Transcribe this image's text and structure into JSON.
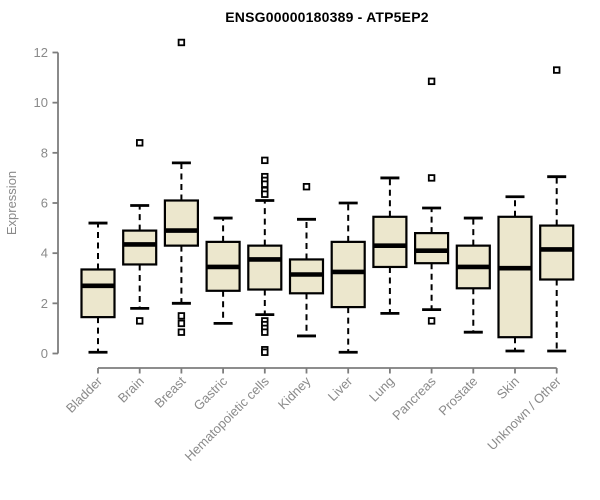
{
  "header": {
    "title_note": "title is bound from chart_data.title"
  },
  "colors": {
    "background": "#ffffff",
    "box_fill": "#ece7cd",
    "box_border": "#000000",
    "median_line": "#000000",
    "whisker": "#000000",
    "outlier_stroke": "#000000",
    "outlier_fill": "#ffffff",
    "axis_line": "#7d7d7d",
    "axis_text": "#8a8a8a",
    "title_text": "#000000"
  },
  "chart_data": {
    "type": "boxplot",
    "title": "ENSG00000180389 - ATP5EP2",
    "ylabel": "Expression",
    "xlabel": "",
    "ylim": [
      0,
      12
    ],
    "y_ticks": [
      0,
      2,
      4,
      6,
      8,
      10,
      12
    ],
    "grid": false,
    "legend": "none",
    "categories": [
      "Bladder",
      "Brain",
      "Breast",
      "Gastric",
      "Hematopoietic cells",
      "Kidney",
      "Liver",
      "Lung",
      "Pancreas",
      "Prostate",
      "Skin",
      "Unknown / Other"
    ],
    "series": [
      {
        "name": "Bladder",
        "whisker_low": 0.05,
        "q1": 1.45,
        "median": 2.7,
        "q3": 3.35,
        "whisker_high": 5.2,
        "outliers": []
      },
      {
        "name": "Brain",
        "whisker_low": 1.8,
        "q1": 3.55,
        "median": 4.35,
        "q3": 4.9,
        "whisker_high": 5.9,
        "outliers": [
          8.4,
          1.3
        ]
      },
      {
        "name": "Breast",
        "whisker_low": 2.0,
        "q1": 4.3,
        "median": 4.9,
        "q3": 6.1,
        "whisker_high": 7.6,
        "outliers": [
          12.4,
          1.5,
          1.2,
          0.85
        ]
      },
      {
        "name": "Gastric",
        "whisker_low": 1.2,
        "q1": 2.5,
        "median": 3.45,
        "q3": 4.45,
        "whisker_high": 5.4,
        "outliers": []
      },
      {
        "name": "Hematopoietic cells",
        "whisker_low": 1.55,
        "q1": 2.55,
        "median": 3.75,
        "q3": 4.3,
        "whisker_high": 6.1,
        "outliers": [
          7.7,
          7.05,
          6.9,
          6.75,
          6.5,
          6.35,
          1.3,
          1.15,
          1.0,
          0.85,
          0.15,
          0.05
        ]
      },
      {
        "name": "Kidney",
        "whisker_low": 0.7,
        "q1": 2.4,
        "median": 3.15,
        "q3": 3.75,
        "whisker_high": 5.35,
        "outliers": [
          6.65
        ]
      },
      {
        "name": "Liver",
        "whisker_low": 0.05,
        "q1": 1.85,
        "median": 3.25,
        "q3": 4.45,
        "whisker_high": 6.0,
        "outliers": []
      },
      {
        "name": "Lung",
        "whisker_low": 1.6,
        "q1": 3.45,
        "median": 4.3,
        "q3": 5.45,
        "whisker_high": 7.0,
        "outliers": []
      },
      {
        "name": "Pancreas",
        "whisker_low": 1.75,
        "q1": 3.6,
        "median": 4.1,
        "q3": 4.8,
        "whisker_high": 5.8,
        "outliers": [
          10.85,
          7.0,
          1.3
        ]
      },
      {
        "name": "Prostate",
        "whisker_low": 0.85,
        "q1": 2.6,
        "median": 3.45,
        "q3": 4.3,
        "whisker_high": 5.4,
        "outliers": []
      },
      {
        "name": "Skin",
        "whisker_low": 0.1,
        "q1": 0.65,
        "median": 3.4,
        "q3": 5.45,
        "whisker_high": 6.25,
        "outliers": []
      },
      {
        "name": "Unknown / Other",
        "whisker_low": 0.1,
        "q1": 2.95,
        "median": 4.15,
        "q3": 5.1,
        "whisker_high": 7.05,
        "outliers": [
          11.3
        ]
      }
    ]
  }
}
